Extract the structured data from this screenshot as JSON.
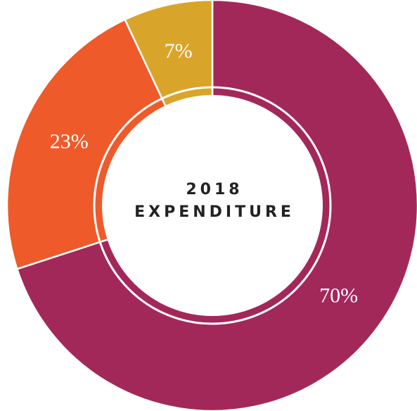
{
  "chart_data": {
    "type": "donut",
    "title": "2018",
    "subtitle": "EXPENDITURE",
    "values": [
      70,
      23,
      7
    ],
    "value_labels": [
      "70%",
      "23%",
      "7%"
    ],
    "colors": [
      "#a3285a",
      "#ee5a2a",
      "#d9a42a"
    ]
  }
}
